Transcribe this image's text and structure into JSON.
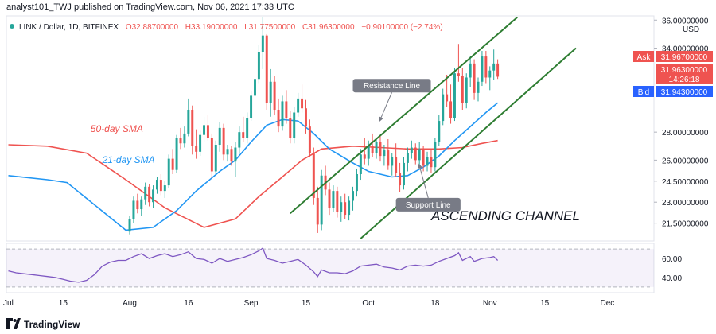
{
  "header": {
    "text": "analyst101_TWJ published on TradingView.com, Nov 06, 2021 17:33 UTC"
  },
  "footer": {
    "brand": "TradingView"
  },
  "chart_data": {
    "type": "candlestick",
    "symbol_line": {
      "symbol": "LINK / Dollar, 1D, BITFINEX",
      "open": "O32.88700000",
      "high": "H33.19000000",
      "low": "L31.77500000",
      "close": "C31.96300000",
      "change": "−0.90100000 (−2.74%)"
    },
    "currency": "USD",
    "price_axis": {
      "ticks": [
        {
          "v": 36.0,
          "label": "36.00000000"
        },
        {
          "v": 34.0,
          "label": "34.00000000"
        },
        {
          "v": 28.0,
          "label": "28.00000000"
        },
        {
          "v": 26.0,
          "label": "26.00000000"
        },
        {
          "v": 24.5,
          "label": "24.50000000"
        },
        {
          "v": 23.0,
          "label": "23.00000000"
        },
        {
          "v": 21.5,
          "label": "21.50000000"
        }
      ],
      "range": [
        20.4,
        36.3
      ]
    },
    "quote_tags": {
      "ask_label": "Ask",
      "ask": "31.96700000",
      "last": "31.96300000",
      "countdown": "14:26:18",
      "bid_label": "Bid",
      "bid": "31.94300000",
      "colors": {
        "ask": "#ef5350",
        "bid": "#2962ff"
      }
    },
    "time_axis": {
      "labels": [
        {
          "label": "Jul",
          "i": 0
        },
        {
          "label": "15",
          "i": 14
        },
        {
          "label": "Aug",
          "i": 31
        },
        {
          "label": "16",
          "i": 46
        },
        {
          "label": "Sep",
          "i": 62
        },
        {
          "label": "15",
          "i": 76
        },
        {
          "label": "Oct",
          "i": 92
        },
        {
          "label": "18",
          "i": 109
        },
        {
          "label": "Nov",
          "i": 123
        },
        {
          "label": "15",
          "i": 137
        },
        {
          "label": "Dec",
          "i": 153
        }
      ],
      "total_days": 165
    },
    "candles": [
      {
        "i": 31,
        "o": 20.9,
        "h": 22.0,
        "l": 20.7,
        "c": 21.8
      },
      {
        "i": 32,
        "o": 21.8,
        "h": 23.4,
        "l": 21.5,
        "c": 23.1
      },
      {
        "i": 33,
        "o": 23.1,
        "h": 23.6,
        "l": 22.2,
        "c": 22.5
      },
      {
        "i": 34,
        "o": 22.5,
        "h": 23.4,
        "l": 22.0,
        "c": 23.2
      },
      {
        "i": 35,
        "o": 23.2,
        "h": 24.4,
        "l": 22.8,
        "c": 24.1
      },
      {
        "i": 36,
        "o": 24.1,
        "h": 24.3,
        "l": 22.7,
        "c": 23.0
      },
      {
        "i": 37,
        "o": 23.0,
        "h": 24.2,
        "l": 22.6,
        "c": 23.9
      },
      {
        "i": 38,
        "o": 23.9,
        "h": 24.8,
        "l": 23.6,
        "c": 24.6
      },
      {
        "i": 39,
        "o": 24.6,
        "h": 25.0,
        "l": 23.5,
        "c": 23.8
      },
      {
        "i": 40,
        "o": 23.8,
        "h": 24.5,
        "l": 23.3,
        "c": 24.2
      },
      {
        "i": 41,
        "o": 24.2,
        "h": 26.4,
        "l": 24.0,
        "c": 26.1
      },
      {
        "i": 42,
        "o": 26.1,
        "h": 26.8,
        "l": 25.0,
        "c": 25.3
      },
      {
        "i": 43,
        "o": 25.3,
        "h": 27.8,
        "l": 25.1,
        "c": 27.6
      },
      {
        "i": 44,
        "o": 27.6,
        "h": 28.3,
        "l": 26.8,
        "c": 27.2
      },
      {
        "i": 45,
        "o": 27.2,
        "h": 28.4,
        "l": 26.9,
        "c": 27.9
      },
      {
        "i": 46,
        "o": 27.9,
        "h": 30.4,
        "l": 27.7,
        "c": 29.6
      },
      {
        "i": 47,
        "o": 29.6,
        "h": 29.9,
        "l": 26.4,
        "c": 27.0
      },
      {
        "i": 48,
        "o": 27.0,
        "h": 28.2,
        "l": 26.1,
        "c": 26.6
      },
      {
        "i": 49,
        "o": 26.6,
        "h": 28.1,
        "l": 26.3,
        "c": 27.8
      },
      {
        "i": 50,
        "o": 27.8,
        "h": 29.1,
        "l": 27.3,
        "c": 28.5
      },
      {
        "i": 51,
        "o": 28.5,
        "h": 29.2,
        "l": 27.4,
        "c": 27.6
      },
      {
        "i": 52,
        "o": 27.6,
        "h": 27.9,
        "l": 24.7,
        "c": 25.2
      },
      {
        "i": 53,
        "o": 25.2,
        "h": 27.4,
        "l": 25.0,
        "c": 27.1
      },
      {
        "i": 54,
        "o": 27.1,
        "h": 28.7,
        "l": 26.6,
        "c": 28.3
      },
      {
        "i": 55,
        "o": 28.3,
        "h": 28.6,
        "l": 26.0,
        "c": 26.4
      },
      {
        "i": 56,
        "o": 26.4,
        "h": 27.1,
        "l": 25.9,
        "c": 26.8
      },
      {
        "i": 57,
        "o": 26.8,
        "h": 27.0,
        "l": 25.6,
        "c": 25.9
      },
      {
        "i": 58,
        "o": 25.9,
        "h": 27.3,
        "l": 24.8,
        "c": 26.9
      },
      {
        "i": 59,
        "o": 26.9,
        "h": 28.4,
        "l": 26.5,
        "c": 28.0
      },
      {
        "i": 60,
        "o": 28.0,
        "h": 29.1,
        "l": 27.3,
        "c": 27.6
      },
      {
        "i": 61,
        "o": 27.6,
        "h": 29.4,
        "l": 27.2,
        "c": 29.0
      },
      {
        "i": 62,
        "o": 29.0,
        "h": 30.9,
        "l": 28.8,
        "c": 30.6
      },
      {
        "i": 63,
        "o": 30.6,
        "h": 32.4,
        "l": 30.1,
        "c": 31.8
      },
      {
        "i": 64,
        "o": 31.8,
        "h": 34.2,
        "l": 31.5,
        "c": 33.7
      },
      {
        "i": 65,
        "o": 33.7,
        "h": 36.2,
        "l": 32.5,
        "c": 34.9
      },
      {
        "i": 66,
        "o": 34.9,
        "h": 35.0,
        "l": 29.6,
        "c": 30.1
      },
      {
        "i": 67,
        "o": 30.1,
        "h": 32.5,
        "l": 29.1,
        "c": 31.6
      },
      {
        "i": 68,
        "o": 31.6,
        "h": 32.0,
        "l": 29.2,
        "c": 29.6
      },
      {
        "i": 69,
        "o": 29.6,
        "h": 30.4,
        "l": 28.0,
        "c": 28.4
      },
      {
        "i": 70,
        "o": 28.4,
        "h": 30.6,
        "l": 28.1,
        "c": 30.2
      },
      {
        "i": 71,
        "o": 30.2,
        "h": 31.0,
        "l": 28.6,
        "c": 29.0
      },
      {
        "i": 72,
        "o": 29.0,
        "h": 29.5,
        "l": 27.2,
        "c": 27.6
      },
      {
        "i": 73,
        "o": 27.6,
        "h": 29.8,
        "l": 27.2,
        "c": 29.4
      },
      {
        "i": 74,
        "o": 29.4,
        "h": 30.8,
        "l": 29.1,
        "c": 30.4
      },
      {
        "i": 75,
        "o": 30.4,
        "h": 31.4,
        "l": 29.4,
        "c": 29.7
      },
      {
        "i": 76,
        "o": 29.7,
        "h": 30.3,
        "l": 27.9,
        "c": 28.4
      },
      {
        "i": 77,
        "o": 28.4,
        "h": 28.9,
        "l": 26.2,
        "c": 26.5
      },
      {
        "i": 78,
        "o": 26.5,
        "h": 26.9,
        "l": 22.8,
        "c": 23.3
      },
      {
        "i": 79,
        "o": 23.3,
        "h": 24.1,
        "l": 20.8,
        "c": 21.4
      },
      {
        "i": 80,
        "o": 21.4,
        "h": 25.3,
        "l": 21.0,
        "c": 24.9
      },
      {
        "i": 81,
        "o": 24.9,
        "h": 25.6,
        "l": 23.5,
        "c": 23.9
      },
      {
        "i": 82,
        "o": 23.9,
        "h": 24.4,
        "l": 22.1,
        "c": 22.6
      },
      {
        "i": 83,
        "o": 22.6,
        "h": 24.2,
        "l": 22.3,
        "c": 23.8
      },
      {
        "i": 84,
        "o": 23.8,
        "h": 24.1,
        "l": 21.9,
        "c": 22.3
      },
      {
        "i": 85,
        "o": 22.3,
        "h": 23.4,
        "l": 21.6,
        "c": 23.0
      },
      {
        "i": 86,
        "o": 23.0,
        "h": 23.6,
        "l": 21.8,
        "c": 22.1
      },
      {
        "i": 87,
        "o": 22.1,
        "h": 23.4,
        "l": 21.7,
        "c": 23.1
      },
      {
        "i": 88,
        "o": 23.1,
        "h": 24.1,
        "l": 22.4,
        "c": 23.8
      },
      {
        "i": 89,
        "o": 23.8,
        "h": 25.4,
        "l": 23.4,
        "c": 25.0
      },
      {
        "i": 90,
        "o": 25.0,
        "h": 26.8,
        "l": 24.6,
        "c": 26.4
      },
      {
        "i": 91,
        "o": 26.4,
        "h": 27.6,
        "l": 25.7,
        "c": 26.1
      },
      {
        "i": 92,
        "o": 26.1,
        "h": 27.4,
        "l": 25.6,
        "c": 27.0
      },
      {
        "i": 93,
        "o": 27.0,
        "h": 27.9,
        "l": 26.2,
        "c": 26.5
      },
      {
        "i": 94,
        "o": 26.5,
        "h": 27.6,
        "l": 26.1,
        "c": 27.3
      },
      {
        "i": 95,
        "o": 27.3,
        "h": 27.8,
        "l": 25.9,
        "c": 26.3
      },
      {
        "i": 96,
        "o": 26.3,
        "h": 27.1,
        "l": 25.6,
        "c": 26.7
      },
      {
        "i": 97,
        "o": 26.7,
        "h": 27.5,
        "l": 25.3,
        "c": 25.6
      },
      {
        "i": 98,
        "o": 25.6,
        "h": 26.5,
        "l": 24.9,
        "c": 26.2
      },
      {
        "i": 99,
        "o": 26.2,
        "h": 27.2,
        "l": 24.8,
        "c": 25.1
      },
      {
        "i": 100,
        "o": 25.1,
        "h": 25.8,
        "l": 23.7,
        "c": 24.2
      },
      {
        "i": 101,
        "o": 24.2,
        "h": 26.2,
        "l": 23.9,
        "c": 25.8
      },
      {
        "i": 102,
        "o": 25.8,
        "h": 26.9,
        "l": 25.2,
        "c": 26.5
      },
      {
        "i": 103,
        "o": 26.5,
        "h": 27.4,
        "l": 26.1,
        "c": 26.9
      },
      {
        "i": 104,
        "o": 26.9,
        "h": 27.2,
        "l": 25.7,
        "c": 26.0
      },
      {
        "i": 105,
        "o": 26.0,
        "h": 27.3,
        "l": 25.5,
        "c": 26.8
      },
      {
        "i": 106,
        "o": 26.8,
        "h": 27.0,
        "l": 25.2,
        "c": 25.6
      },
      {
        "i": 107,
        "o": 25.6,
        "h": 26.6,
        "l": 25.2,
        "c": 26.2
      },
      {
        "i": 108,
        "o": 26.2,
        "h": 26.8,
        "l": 25.1,
        "c": 25.5
      },
      {
        "i": 109,
        "o": 25.5,
        "h": 27.6,
        "l": 25.2,
        "c": 27.3
      },
      {
        "i": 110,
        "o": 27.3,
        "h": 29.2,
        "l": 27.0,
        "c": 28.8
      },
      {
        "i": 111,
        "o": 28.8,
        "h": 31.1,
        "l": 28.5,
        "c": 30.7
      },
      {
        "i": 112,
        "o": 30.7,
        "h": 32.1,
        "l": 29.8,
        "c": 30.2
      },
      {
        "i": 113,
        "o": 30.2,
        "h": 31.4,
        "l": 28.6,
        "c": 29.0
      },
      {
        "i": 114,
        "o": 29.0,
        "h": 32.6,
        "l": 28.8,
        "c": 32.2
      },
      {
        "i": 115,
        "o": 32.2,
        "h": 34.3,
        "l": 31.6,
        "c": 32.0
      },
      {
        "i": 116,
        "o": 32.0,
        "h": 32.6,
        "l": 29.6,
        "c": 30.1
      },
      {
        "i": 117,
        "o": 30.1,
        "h": 32.2,
        "l": 29.7,
        "c": 31.9
      },
      {
        "i": 118,
        "o": 31.9,
        "h": 33.4,
        "l": 31.2,
        "c": 32.9
      },
      {
        "i": 119,
        "o": 32.9,
        "h": 33.2,
        "l": 30.3,
        "c": 30.8
      },
      {
        "i": 120,
        "o": 30.8,
        "h": 31.9,
        "l": 30.2,
        "c": 31.6
      },
      {
        "i": 121,
        "o": 31.6,
        "h": 33.8,
        "l": 31.3,
        "c": 33.4
      },
      {
        "i": 122,
        "o": 33.4,
        "h": 33.8,
        "l": 31.5,
        "c": 31.9
      },
      {
        "i": 123,
        "o": 31.9,
        "h": 32.7,
        "l": 31.0,
        "c": 32.4
      },
      {
        "i": 124,
        "o": 32.4,
        "h": 33.9,
        "l": 31.7,
        "c": 32.9
      },
      {
        "i": 125,
        "o": 32.9,
        "h": 33.2,
        "l": 31.8,
        "c": 31.96
      }
    ],
    "sma": [
      {
        "name": "50-day SMA",
        "color": "#ef5350",
        "points": [
          [
            0,
            27.1
          ],
          [
            10,
            27.0
          ],
          [
            20,
            26.5
          ],
          [
            30,
            24.6
          ],
          [
            40,
            22.6
          ],
          [
            50,
            21.2
          ],
          [
            58,
            21.8
          ],
          [
            64,
            23.4
          ],
          [
            70,
            24.8
          ],
          [
            75,
            26.0
          ],
          [
            80,
            26.8
          ],
          [
            88,
            27.0
          ],
          [
            95,
            26.9
          ],
          [
            102,
            26.8
          ],
          [
            110,
            26.8
          ],
          [
            116,
            26.9
          ],
          [
            121,
            27.2
          ],
          [
            125,
            27.4
          ]
        ]
      },
      {
        "name": "21-day SMA",
        "color": "#2196f3",
        "points": [
          [
            0,
            24.9
          ],
          [
            10,
            24.6
          ],
          [
            15,
            24.4
          ],
          [
            30,
            21.0
          ],
          [
            37,
            21.2
          ],
          [
            43,
            22.4
          ],
          [
            48,
            23.8
          ],
          [
            54,
            25.2
          ],
          [
            58,
            26.0
          ],
          [
            62,
            27.3
          ],
          [
            66,
            28.5
          ],
          [
            70,
            28.9
          ],
          [
            74,
            28.8
          ],
          [
            78,
            27.9
          ],
          [
            82,
            26.8
          ],
          [
            88,
            25.8
          ],
          [
            92,
            25.2
          ],
          [
            98,
            24.8
          ],
          [
            102,
            24.9
          ],
          [
            106,
            25.5
          ],
          [
            110,
            26.3
          ],
          [
            114,
            27.4
          ],
          [
            118,
            28.4
          ],
          [
            122,
            29.4
          ],
          [
            125,
            30.1
          ]
        ]
      }
    ],
    "channel": {
      "color": "#2e7d32",
      "upper": [
        [
          72,
          22.2
        ],
        [
          130,
          36.2
        ]
      ],
      "lower": [
        [
          90,
          20.4
        ],
        [
          145,
          34.0
        ]
      ]
    },
    "annotations": [
      {
        "text": "50-day SMA",
        "color": "#ef5350",
        "i": 21,
        "v": 28.0
      },
      {
        "text": "21-day SMA",
        "color": "#2196f3",
        "i": 24,
        "v": 25.8
      },
      {
        "text": "ASCENDING CHANNEL",
        "color": "#131722",
        "i": 108,
        "v": 21.7
      }
    ],
    "callouts": [
      {
        "text": "Resistance Line",
        "i": 88,
        "v": 31.8,
        "arrow_to": [
          95,
          28.9
        ]
      },
      {
        "text": "Support Line",
        "i": 99,
        "v": 23.3,
        "arrow_to": [
          105,
          25.6
        ]
      }
    ],
    "rsi": {
      "ticks": [
        {
          "v": 60,
          "label": "60.00"
        },
        {
          "v": 40,
          "label": "40.00"
        }
      ],
      "band": [
        30,
        70
      ],
      "range": [
        24,
        76
      ],
      "color": "#7e57c2",
      "values": [
        [
          0,
          47
        ],
        [
          2,
          45
        ],
        [
          4,
          44
        ],
        [
          6,
          43
        ],
        [
          8,
          42
        ],
        [
          10,
          41
        ],
        [
          12,
          40
        ],
        [
          14,
          38
        ],
        [
          16,
          36
        ],
        [
          18,
          35
        ],
        [
          20,
          37
        ],
        [
          22,
          43
        ],
        [
          24,
          52
        ],
        [
          26,
          56
        ],
        [
          28,
          58
        ],
        [
          30,
          58
        ],
        [
          32,
          62
        ],
        [
          34,
          65
        ],
        [
          36,
          60
        ],
        [
          38,
          63
        ],
        [
          40,
          65
        ],
        [
          42,
          62
        ],
        [
          44,
          64
        ],
        [
          46,
          67
        ],
        [
          48,
          60
        ],
        [
          50,
          59
        ],
        [
          52,
          55
        ],
        [
          54,
          60
        ],
        [
          56,
          57
        ],
        [
          58,
          59
        ],
        [
          60,
          61
        ],
        [
          62,
          64
        ],
        [
          64,
          68
        ],
        [
          65,
          71
        ],
        [
          66,
          60
        ],
        [
          68,
          58
        ],
        [
          70,
          55
        ],
        [
          72,
          57
        ],
        [
          74,
          59
        ],
        [
          76,
          53
        ],
        [
          78,
          46
        ],
        [
          79,
          41
        ],
        [
          80,
          48
        ],
        [
          82,
          45
        ],
        [
          84,
          45
        ],
        [
          86,
          44
        ],
        [
          88,
          47
        ],
        [
          90,
          52
        ],
        [
          92,
          53
        ],
        [
          94,
          54
        ],
        [
          96,
          51
        ],
        [
          98,
          50
        ],
        [
          100,
          48
        ],
        [
          102,
          52
        ],
        [
          104,
          53
        ],
        [
          106,
          52
        ],
        [
          108,
          53
        ],
        [
          110,
          57
        ],
        [
          112,
          60
        ],
        [
          114,
          63
        ],
        [
          115,
          66
        ],
        [
          116,
          58
        ],
        [
          118,
          62
        ],
        [
          119,
          57
        ],
        [
          121,
          60
        ],
        [
          123,
          61
        ],
        [
          124,
          62
        ],
        [
          125,
          58
        ]
      ]
    }
  }
}
